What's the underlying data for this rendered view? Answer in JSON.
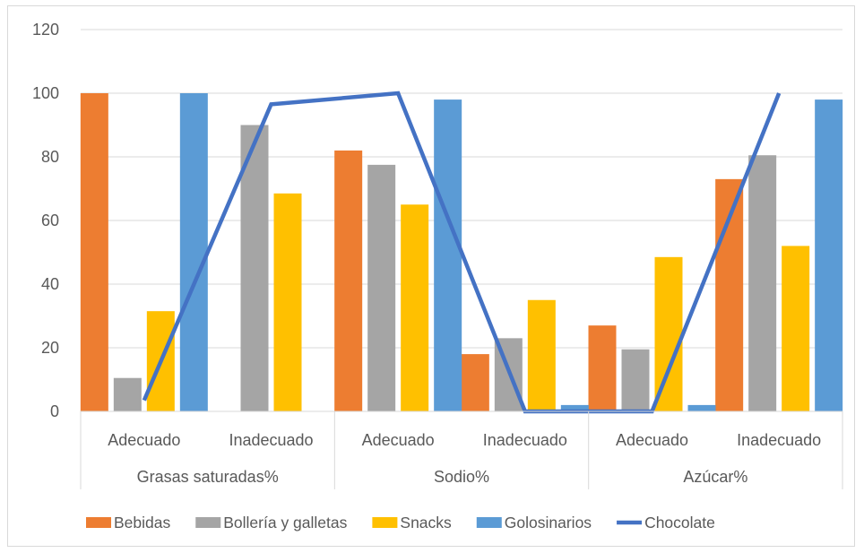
{
  "chart_data": {
    "type": "bar",
    "groups": [
      "Grasas saturadas%",
      "Sodio%",
      "Azúcar%"
    ],
    "categories": [
      "Adecuado",
      "Inadecuado",
      "Adecuado",
      "Inadecuado",
      "Adecuado",
      "Inadecuado"
    ],
    "series": [
      {
        "name": "Bebidas",
        "type": "bar",
        "color": "#ed7d31",
        "values": [
          100,
          0,
          82,
          18,
          27,
          73
        ]
      },
      {
        "name": "Bollería y galletas",
        "type": "bar",
        "color": "#a5a5a5",
        "values": [
          10.5,
          90,
          77.5,
          23,
          19.5,
          80.5
        ]
      },
      {
        "name": "Snacks",
        "type": "bar",
        "color": "#ffc000",
        "values": [
          31.5,
          68.5,
          65,
          35,
          48.5,
          52
        ]
      },
      {
        "name": "Golosinarios",
        "type": "bar",
        "color": "#5b9bd5",
        "values": [
          100,
          0,
          98,
          2,
          2,
          98
        ]
      },
      {
        "name": "Chocolate",
        "type": "line",
        "color": "#4472c4",
        "values": [
          3.5,
          96.5,
          100,
          0,
          0,
          100
        ]
      }
    ],
    "yticks": [
      "0",
      "20",
      "40",
      "60",
      "80",
      "100",
      "120"
    ],
    "ylim": [
      0,
      120
    ],
    "grid": true,
    "legend": "bottom"
  }
}
